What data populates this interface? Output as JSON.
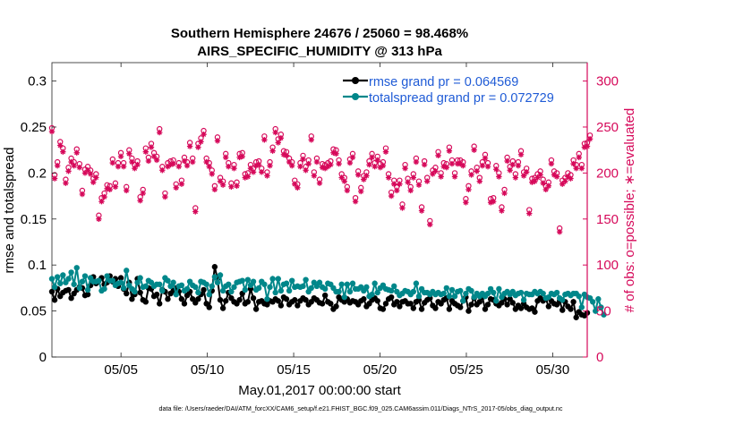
{
  "chart_data": {
    "type": "line",
    "title_line1": "Southern Hemisphere 24676 / 25060 = 98.468%",
    "title_line2": "AIRS_SPECIFIC_HUMIDITY @ 313 hPa",
    "xlabel": "May.01,2017 00:00:00 start",
    "ylabel_left": "rmse and totalspread",
    "ylabel_right": "# of obs: o=possible; ∗=evaluated",
    "footer": "data file: /Users/raeder/DAI/ATM_forcXX/CAM6_setup/f.e21.FHIST_BGC.f09_025.CAM6assim.011/Diags_NTrS_2017-05/obs_diag_output.nc",
    "x_range": [
      1.0,
      32.0
    ],
    "x_ticks": [
      5,
      10,
      15,
      20,
      25,
      30
    ],
    "x_tick_labels": [
      "05/05",
      "05/10",
      "05/15",
      "05/20",
      "05/25",
      "05/30"
    ],
    "ylim_left": [
      0,
      0.32
    ],
    "y_ticks_left": [
      0,
      0.05,
      0.1,
      0.15,
      0.2,
      0.25,
      0.3
    ],
    "y_tick_labels_left": [
      "0",
      "0.05",
      "0.1",
      "0.15",
      "0.2",
      "0.25",
      "0.3"
    ],
    "ylim_right": [
      0,
      320
    ],
    "y_ticks_right": [
      0,
      50,
      100,
      150,
      200,
      250,
      300
    ],
    "y_tick_labels_right": [
      "0",
      "50",
      "100",
      "150",
      "200",
      "250",
      "300"
    ],
    "legend_position": "top-right",
    "colors": {
      "rmse": "#000000",
      "spread": "#00878a",
      "obs": "#d6095a"
    },
    "series": [
      {
        "name": "rmse grand pr = 0.064569",
        "color": "#000000",
        "values": [
          0.071,
          0.062,
          0.074,
          0.066,
          0.07,
          0.072,
          0.073,
          0.064,
          0.069,
          0.073,
          0.076,
          0.075,
          0.067,
          0.068,
          0.078,
          0.087,
          0.08,
          0.083,
          0.086,
          0.079,
          0.081,
          0.088,
          0.082,
          0.085,
          0.077,
          0.086,
          0.074,
          0.069,
          0.081,
          0.063,
          0.068,
          0.085,
          0.07,
          0.062,
          0.06,
          0.075,
          0.074,
          0.066,
          0.068,
          0.058,
          0.073,
          0.071,
          0.063,
          0.069,
          0.072,
          0.075,
          0.071,
          0.063,
          0.058,
          0.067,
          0.071,
          0.063,
          0.059,
          0.063,
          0.068,
          0.073,
          0.058,
          0.054,
          0.072,
          0.098,
          0.085,
          0.062,
          0.053,
          0.061,
          0.07,
          0.064,
          0.06,
          0.058,
          0.062,
          0.069,
          0.058,
          0.06,
          0.074,
          0.064,
          0.052,
          0.06,
          0.061,
          0.058,
          0.057,
          0.061,
          0.06,
          0.063,
          0.061,
          0.056,
          0.065,
          0.063,
          0.057,
          0.06,
          0.062,
          0.056,
          0.061,
          0.064,
          0.062,
          0.057,
          0.06,
          0.064,
          0.062,
          0.059,
          0.058,
          0.067,
          0.06,
          0.058,
          0.052,
          0.055,
          0.065,
          0.062,
          0.06,
          0.063,
          0.059,
          0.061,
          0.06,
          0.057,
          0.061,
          0.063,
          0.055,
          0.058,
          0.062,
          0.064,
          0.061,
          0.053,
          0.052,
          0.058,
          0.063,
          0.065,
          0.057,
          0.06,
          0.055,
          0.06,
          0.061,
          0.058,
          0.058,
          0.053,
          0.06,
          0.062,
          0.052,
          0.059,
          0.062,
          0.064,
          0.056,
          0.053,
          0.06,
          0.058,
          0.062,
          0.064,
          0.052,
          0.061,
          0.058,
          0.056,
          0.054,
          0.061,
          0.065,
          0.05,
          0.057,
          0.064,
          0.057,
          0.06,
          0.065,
          0.052,
          0.057,
          0.063,
          0.062,
          0.058,
          0.056,
          0.059,
          0.063,
          0.057,
          0.063,
          0.059,
          0.052,
          0.056,
          0.053,
          0.058,
          0.054,
          0.052,
          0.053,
          0.049,
          0.061,
          0.064,
          0.061,
          0.063,
          0.055,
          0.061,
          0.058,
          0.057,
          0.061,
          0.051,
          0.06,
          0.055,
          0.052,
          0.06,
          0.043,
          0.049,
          0.046,
          0.045,
          0.048
        ]
      },
      {
        "name": "totalspread grand pr = 0.072729",
        "color": "#00878a",
        "values": [
          0.085,
          0.076,
          0.087,
          0.08,
          0.089,
          0.081,
          0.085,
          0.092,
          0.079,
          0.097,
          0.075,
          0.082,
          0.088,
          0.073,
          0.086,
          0.082,
          0.082,
          0.083,
          0.072,
          0.074,
          0.088,
          0.083,
          0.083,
          0.078,
          0.08,
          0.081,
          0.075,
          0.094,
          0.078,
          0.074,
          0.071,
          0.081,
          0.086,
          0.076,
          0.077,
          0.083,
          0.081,
          0.077,
          0.079,
          0.079,
          0.072,
          0.086,
          0.083,
          0.077,
          0.081,
          0.068,
          0.077,
          0.078,
          0.072,
          0.074,
          0.082,
          0.078,
          0.076,
          0.07,
          0.082,
          0.081,
          0.079,
          0.068,
          0.077,
          0.087,
          0.081,
          0.089,
          0.072,
          0.077,
          0.079,
          0.071,
          0.076,
          0.081,
          0.082,
          0.083,
          0.073,
          0.084,
          0.078,
          0.082,
          0.073,
          0.075,
          0.082,
          0.079,
          0.063,
          0.076,
          0.085,
          0.07,
          0.085,
          0.072,
          0.079,
          0.08,
          0.072,
          0.083,
          0.076,
          0.077,
          0.076,
          0.077,
          0.084,
          0.071,
          0.075,
          0.081,
          0.077,
          0.081,
          0.076,
          0.074,
          0.08,
          0.079,
          0.075,
          0.071,
          0.071,
          0.079,
          0.065,
          0.079,
          0.071,
          0.08,
          0.074,
          0.074,
          0.076,
          0.072,
          0.076,
          0.066,
          0.068,
          0.08,
          0.07,
          0.075,
          0.078,
          0.074,
          0.073,
          0.072,
          0.077,
          0.071,
          0.067,
          0.069,
          0.072,
          0.071,
          0.068,
          0.071,
          0.08,
          0.066,
          0.074,
          0.07,
          0.07,
          0.068,
          0.071,
          0.068,
          0.07,
          0.068,
          0.069,
          0.075,
          0.066,
          0.073,
          0.066,
          0.071,
          0.072,
          0.061,
          0.069,
          0.074,
          0.072,
          0.065,
          0.069,
          0.066,
          0.069,
          0.066,
          0.069,
          0.074,
          0.07,
          0.061,
          0.074,
          0.065,
          0.069,
          0.071,
          0.068,
          0.071,
          0.067,
          0.069,
          0.07,
          0.062,
          0.069,
          0.068,
          0.068,
          0.071,
          0.069,
          0.071,
          0.069,
          0.064,
          0.065,
          0.069,
          0.068,
          0.07,
          0.064,
          0.062,
          0.068,
          0.069,
          0.067,
          0.069,
          0.069,
          0.066,
          0.054,
          0.068,
          0.065,
          0.064,
          0.06,
          0.05,
          0.063,
          0.054,
          0.046
        ]
      }
    ],
    "obs_possible": {
      "name": "o=possible",
      "color": "#d6095a",
      "values": [
        247,
        196,
        210,
        232,
        225,
        191,
        204,
        214,
        210,
        224,
        208,
        179,
        202,
        205,
        201,
        192,
        197,
        152,
        171,
        176,
        185,
        184,
        213,
        187,
        209,
        220,
        209,
        183,
        223,
        214,
        207,
        211,
        172,
        180,
        225,
        215,
        230,
        220,
        216,
        246,
        205,
        176,
        209,
        211,
        212,
        186,
        209,
        190,
        215,
        210,
        231,
        214,
        160,
        230,
        236,
        244,
        214,
        209,
        201,
        184,
        237,
        193,
        189,
        219,
        209,
        187,
        207,
        188,
        219,
        220,
        197,
        198,
        207,
        203,
        210,
        211,
        203,
        238,
        199,
        210,
        226,
        246,
        235,
        240,
        222,
        221,
        214,
        210,
        190,
        186,
        209,
        217,
        205,
        212,
        238,
        199,
        214,
        191,
        208,
        207,
        209,
        211,
        224,
        223,
        212,
        197,
        193,
        183,
        213,
        219,
        171,
        200,
        182,
        195,
        199,
        211,
        219,
        209,
        216,
        208,
        210,
        225,
        197,
        177,
        190,
        183,
        190,
        164,
        207,
        192,
        183,
        197,
        214,
        189,
        161,
        211,
        193,
        146,
        201,
        204,
        221,
        198,
        209,
        208,
        226,
        212,
        198,
        212,
        212,
        210,
        170,
        184,
        200,
        227,
        204,
        193,
        210,
        218,
        209,
        170,
        171,
        206,
        198,
        161,
        180,
        215,
        205,
        211,
        197,
        210,
        222,
        199,
        203,
        158,
        192,
        193,
        197,
        200,
        191,
        184,
        188,
        212,
        200,
        198,
        138,
        190,
        193,
        198,
        196,
        212,
        207,
        219,
        207,
        230,
        231,
        239
      ]
    },
    "obs_evaluated": {
      "name": "∗=evaluated",
      "color": "#d6095a",
      "values": [
        246,
        195,
        209,
        231,
        224,
        190,
        203,
        213,
        209,
        223,
        207,
        178,
        201,
        204,
        200,
        191,
        196,
        151,
        170,
        175,
        184,
        183,
        212,
        186,
        208,
        219,
        208,
        182,
        222,
        213,
        206,
        210,
        171,
        179,
        224,
        214,
        229,
        219,
        215,
        245,
        204,
        175,
        208,
        210,
        211,
        185,
        208,
        189,
        214,
        209,
        230,
        213,
        159,
        229,
        235,
        243,
        213,
        208,
        200,
        183,
        236,
        192,
        188,
        218,
        208,
        186,
        206,
        187,
        218,
        219,
        196,
        197,
        206,
        202,
        209,
        210,
        202,
        237,
        198,
        209,
        225,
        245,
        234,
        239,
        221,
        220,
        213,
        209,
        189,
        185,
        208,
        216,
        204,
        211,
        237,
        198,
        213,
        190,
        207,
        206,
        208,
        210,
        223,
        222,
        211,
        196,
        192,
        182,
        212,
        218,
        170,
        199,
        181,
        194,
        198,
        210,
        218,
        208,
        215,
        207,
        209,
        224,
        196,
        176,
        189,
        182,
        189,
        163,
        206,
        191,
        182,
        196,
        213,
        188,
        160,
        210,
        192,
        145,
        200,
        203,
        220,
        197,
        208,
        207,
        225,
        211,
        197,
        211,
        211,
        209,
        169,
        183,
        199,
        226,
        203,
        192,
        209,
        217,
        208,
        169,
        170,
        205,
        197,
        160,
        179,
        214,
        204,
        210,
        196,
        209,
        221,
        198,
        202,
        157,
        191,
        192,
        196,
        199,
        190,
        183,
        187,
        211,
        199,
        197,
        137,
        189,
        192,
        197,
        195,
        211,
        206,
        218,
        206,
        229,
        230,
        238
      ]
    }
  }
}
